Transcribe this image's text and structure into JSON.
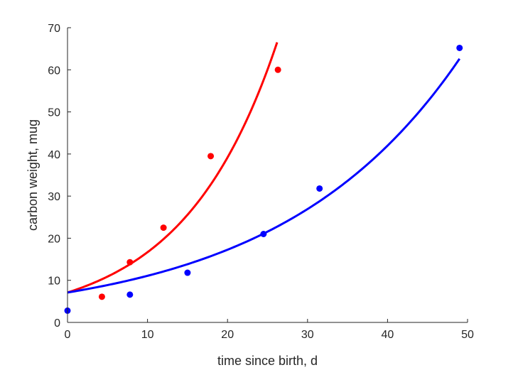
{
  "chart_data": {
    "type": "scatter",
    "xlabel": "time since birth, d",
    "ylabel": "carbon weight, mug",
    "xlim": [
      0,
      50
    ],
    "ylim": [
      0,
      70
    ],
    "xticks": [
      "0",
      "10",
      "20",
      "30",
      "40",
      "50"
    ],
    "yticks": [
      "0",
      "10",
      "20",
      "30",
      "40",
      "50",
      "60",
      "70"
    ],
    "grid": false,
    "legend": "none",
    "series": [
      {
        "color": "#ff0000",
        "points": [
          {
            "x": 4.3,
            "y": 6.1
          },
          {
            "x": 7.8,
            "y": 14.3
          },
          {
            "x": 12.0,
            "y": 22.5
          },
          {
            "x": 17.9,
            "y": 39.5
          },
          {
            "x": 26.3,
            "y": 60.0
          }
        ],
        "fit": {
          "model": "exponential",
          "a": 7.1,
          "b": 0.0854,
          "x_range": [
            0,
            26.2
          ]
        }
      },
      {
        "color": "#0000ff",
        "points": [
          {
            "x": 0.0,
            "y": 2.8
          },
          {
            "x": 7.8,
            "y": 6.6
          },
          {
            "x": 15.0,
            "y": 11.8
          },
          {
            "x": 24.5,
            "y": 21.0
          },
          {
            "x": 31.5,
            "y": 31.8
          },
          {
            "x": 49.0,
            "y": 65.2
          }
        ],
        "fit": {
          "model": "exponential",
          "a": 7.1,
          "b": 0.04443,
          "x_range": [
            0,
            49
          ]
        }
      }
    ]
  }
}
